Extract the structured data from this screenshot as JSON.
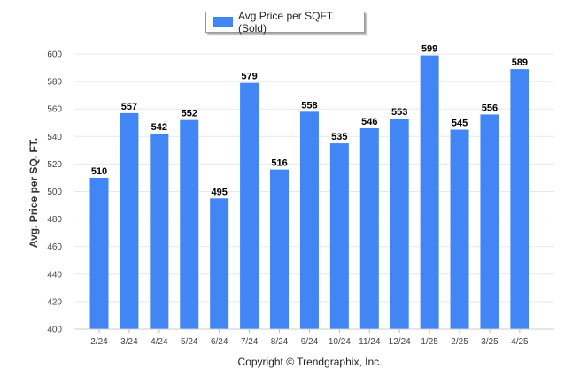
{
  "colors": {
    "bar": "#4285f4",
    "grid": "#e8e8e8",
    "axis_text": "#444444",
    "label_text": "#000000"
  },
  "credit": "Copyright © Trendgraphix, Inc.",
  "chart_data": {
    "type": "bar",
    "title": "",
    "xlabel": "",
    "ylabel": "Avg. Price per SQ. FT.",
    "ylim": [
      400,
      600
    ],
    "yticks": [
      400,
      420,
      440,
      460,
      480,
      500,
      520,
      540,
      560,
      580,
      600
    ],
    "grid": true,
    "legend_position": "top-center",
    "categories": [
      "2/24",
      "3/24",
      "4/24",
      "5/24",
      "6/24",
      "7/24",
      "8/24",
      "9/24",
      "10/24",
      "11/24",
      "12/24",
      "1/25",
      "2/25",
      "3/25",
      "4/25"
    ],
    "series": [
      {
        "name": "Avg Price per SQFT (Sold)",
        "values": [
          510,
          557,
          542,
          552,
          495,
          579,
          516,
          558,
          535,
          546,
          553,
          599,
          545,
          556,
          589
        ]
      }
    ],
    "data_labels": true
  }
}
